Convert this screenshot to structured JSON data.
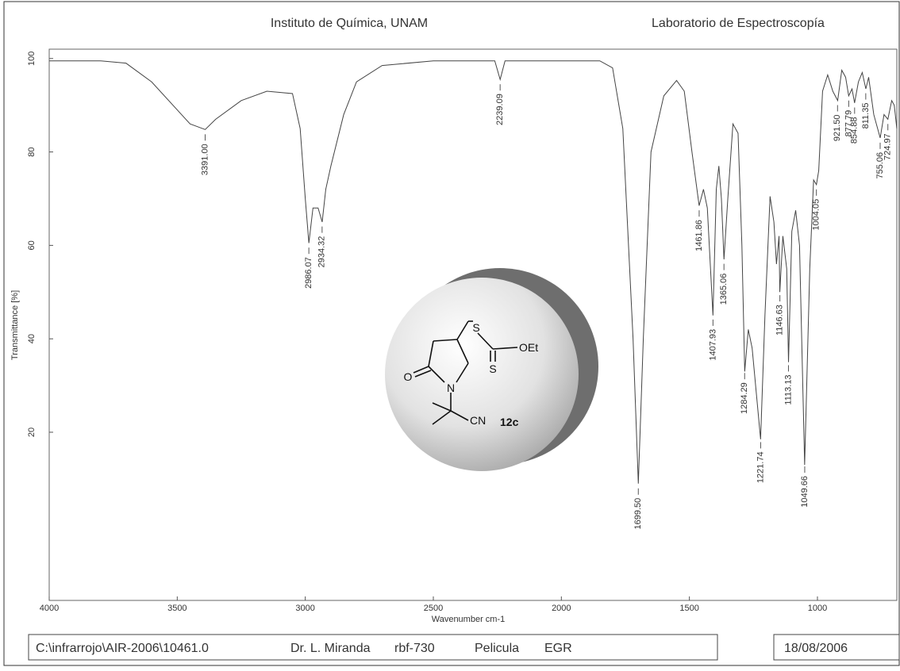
{
  "chart_data": {
    "type": "line",
    "header_left": "Instituto de Química, UNAM",
    "header_right": "Laboratorio de Espectroscopía",
    "x_label": "Wavenumber cm-1",
    "y_label": "Transmittance [%]",
    "xlim": [
      4000,
      690
    ],
    "ylim": [
      -16,
      102
    ],
    "xticks": [
      4000,
      3500,
      3000,
      2500,
      2000,
      1500,
      1000
    ],
    "yticks": [
      20,
      40,
      60,
      80,
      100
    ],
    "grid": false,
    "series": [
      {
        "color": "#444444",
        "x": [
          4000,
          3800,
          3700,
          3600,
          3500,
          3450,
          3391,
          3350,
          3250,
          3150,
          3050,
          3020,
          3000,
          2986,
          2970,
          2950,
          2934,
          2920,
          2900,
          2850,
          2800,
          2700,
          2500,
          2260,
          2239,
          2220,
          2000,
          1850,
          1800,
          1760,
          1720,
          1699.5,
          1680,
          1650,
          1600,
          1550,
          1520,
          1490,
          1462,
          1445,
          1430,
          1408,
          1395,
          1385,
          1375,
          1365,
          1350,
          1330,
          1310,
          1295,
          1284,
          1270,
          1255,
          1222,
          1205,
          1185,
          1170,
          1160,
          1150,
          1147,
          1135,
          1120,
          1113,
          1100,
          1085,
          1070,
          1050,
          1030,
          1015,
          1004,
          995,
          980,
          960,
          940,
          921,
          905,
          890,
          878,
          865,
          855,
          840,
          825,
          811,
          800,
          780,
          755,
          740,
          725,
          710,
          700,
          690
        ],
        "values": [
          99.5,
          99.5,
          99,
          95,
          89,
          86,
          84.8,
          87,
          91,
          93,
          92.5,
          85,
          70,
          60.5,
          68,
          68,
          65,
          72,
          77,
          88,
          95,
          98.5,
          99.5,
          99.5,
          95.5,
          99.5,
          99.5,
          99.5,
          98,
          85,
          40,
          9,
          40,
          80,
          92,
          95.3,
          93,
          80,
          68.5,
          72,
          68,
          45,
          72,
          77,
          70,
          57,
          70,
          86,
          84,
          60,
          33,
          42,
          38,
          18.5,
          45,
          70.5,
          65,
          56,
          62,
          50,
          62,
          55,
          35,
          63,
          67.5,
          60,
          13,
          55,
          74,
          73,
          76,
          93,
          96.5,
          93,
          91,
          97.5,
          96,
          92,
          93.5,
          90.5,
          95,
          97,
          93.5,
          96,
          88,
          83,
          88,
          87,
          91,
          90,
          85
        ]
      }
    ],
    "peaks": [
      {
        "value": 3391.0,
        "label": "3391.00"
      },
      {
        "value": 2986.07,
        "label": "2986.07"
      },
      {
        "value": 2934.32,
        "label": "2934.32"
      },
      {
        "value": 2239.09,
        "label": "2239.09"
      },
      {
        "value": 1699.5,
        "label": "1699.50"
      },
      {
        "value": 1461.86,
        "label": "1461.86"
      },
      {
        "value": 1407.93,
        "label": "1407.93"
      },
      {
        "value": 1365.06,
        "label": "1365.06"
      },
      {
        "value": 1284.29,
        "label": "1284.29"
      },
      {
        "value": 1221.74,
        "label": "1221.74"
      },
      {
        "value": 1146.63,
        "label": "1146.63"
      },
      {
        "value": 1113.13,
        "label": "1113.13"
      },
      {
        "value": 1049.66,
        "label": "1049.66"
      },
      {
        "value": 1004.05,
        "label": "1004.05"
      },
      {
        "value": 921.5,
        "label": "921.50"
      },
      {
        "value": 877.79,
        "label": "877.79"
      },
      {
        "value": 854.88,
        "label": "854.88"
      },
      {
        "value": 811.35,
        "label": "811.35"
      },
      {
        "value": 755.06,
        "label": "755.06"
      },
      {
        "value": 724.97,
        "label": "724.97"
      }
    ],
    "inset": {
      "atoms": [
        "O",
        "N",
        "S",
        "OEt",
        "S",
        "CN"
      ],
      "compound": "12c"
    },
    "footer": {
      "file": "C:\\infrarrojo\\AIR-2006\\10461.0",
      "operator": "Dr. L. Miranda",
      "sample": "rbf-730",
      "method": "Pelicula",
      "initials": "EGR",
      "date": "18/08/2006"
    }
  }
}
